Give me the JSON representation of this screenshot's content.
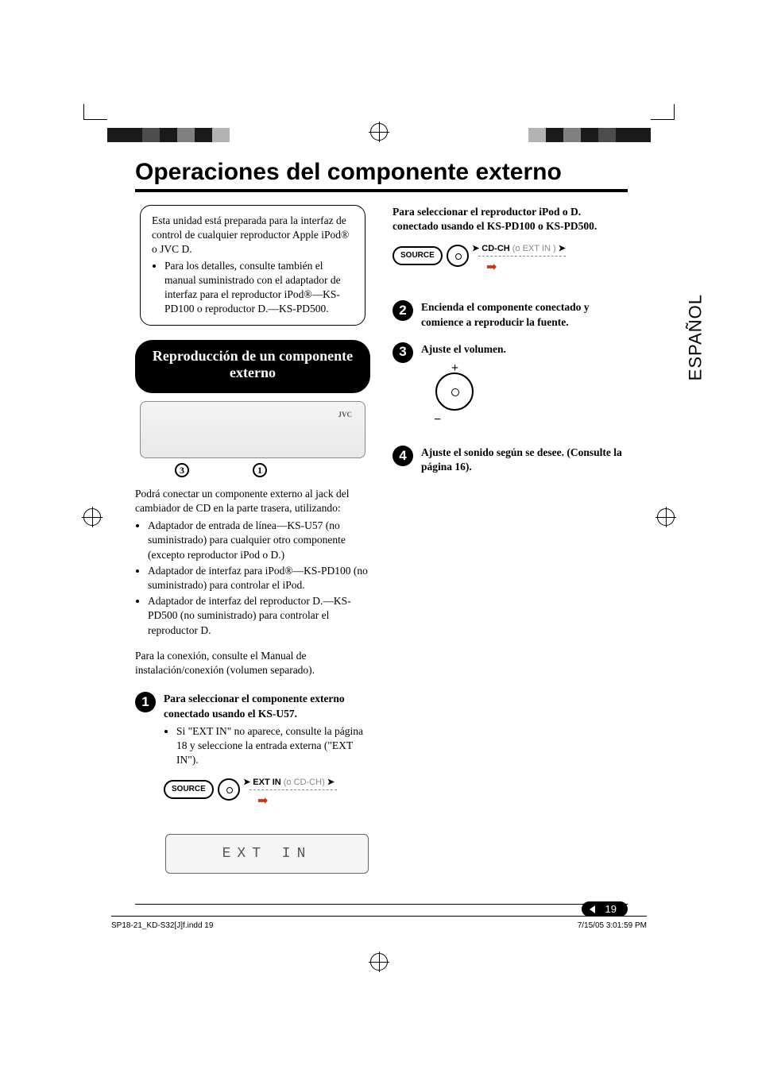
{
  "crop_colors_left": [
    "#1a1a1a",
    "#1a1a1a",
    "#4d4d4d",
    "#1a1a1a",
    "#808080",
    "#1a1a1a",
    "#b3b3b3",
    "#ffffff"
  ],
  "crop_colors_right": [
    "#ffffff",
    "#b3b3b3",
    "#1a1a1a",
    "#808080",
    "#1a1a1a",
    "#4d4d4d",
    "#1a1a1a",
    "#1a1a1a"
  ],
  "title": "Operaciones del componente externo",
  "side_tab": "ESPAÑOL",
  "intro": {
    "text": "Esta unidad está preparada para la interfaz de control de cualquier reproductor Apple iPod® o JVC D.",
    "bullet": "Para los detalles, consulte también el manual suministrado con el adaptador de interfaz para el reproductor iPod®—KS-PD100 o reproductor D.—KS-PD500."
  },
  "section_pill": "Reproducción de un componente externo",
  "device_labels": [
    "3",
    "1"
  ],
  "connect_intro": "Podrá conectar un componente externo al jack del cambiador de CD en la parte trasera, utilizando:",
  "connect_bullets": [
    "Adaptador de entrada de línea—KS-U57 (no suministrado) para cualquier otro componente (excepto reproductor iPod o D.)",
    "Adaptador de interfaz para iPod®—KS-PD100 (no suministrado) para controlar el iPod.",
    "Adaptador de interfaz del reproductor D.—KS-PD500 (no suministrado) para controlar el reproductor D."
  ],
  "connect_note": "Para la conexión, consulte el Manual de instalación/conexión (volumen separado).",
  "step1": {
    "num": "1",
    "heading": "Para seleccionar el componente externo conectado usando el KS-U57.",
    "bullet": "Si \"EXT IN\" no aparece, consulte la página 18 y seleccione la entrada externa (\"EXT IN\").",
    "source_label": "SOURCE",
    "primary": "EXT IN",
    "alt": "(o CD-CH)",
    "display_text": "EXT IN",
    "heading_b": "Para seleccionar el reproductor iPod o D. conectado usando el KS-PD100 o KS-PD500.",
    "primary_b": "CD-CH",
    "alt_b": "(o EXT IN )"
  },
  "step2": {
    "num": "2",
    "text": "Encienda el componente conectado y comience a reproducir la fuente."
  },
  "step3": {
    "num": "3",
    "text": "Ajuste el volumen."
  },
  "step4": {
    "num": "4",
    "text": "Ajuste el sonido según se desee. (Consulte la página 16)."
  },
  "page_number": "19",
  "footer": {
    "left": "SP18-21_KD-S32[J]f.indd   19",
    "right": "7/15/05   3:01:59 PM"
  }
}
